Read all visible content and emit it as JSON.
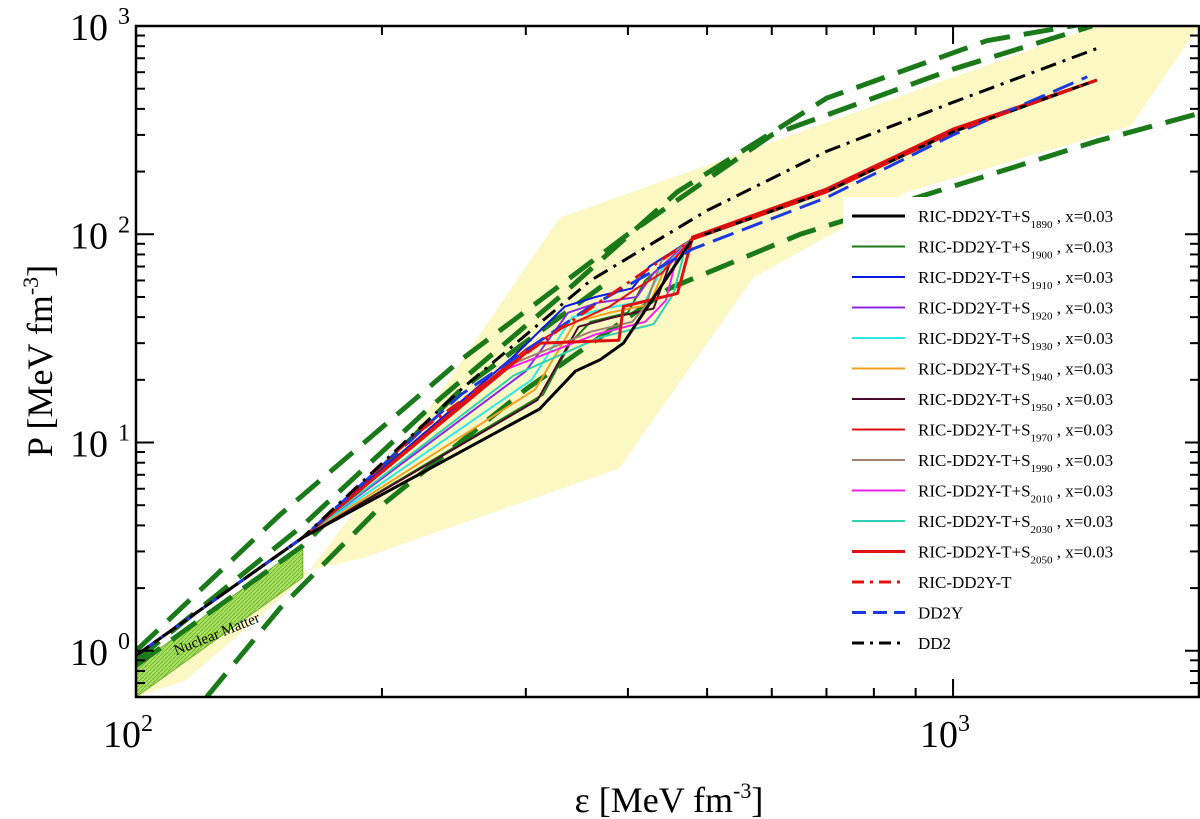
{
  "chart_data": {
    "type": "line",
    "title": "",
    "xlabel": {
      "base": "ε [MeV fm",
      "sup": "-3",
      "end": "]"
    },
    "ylabel": {
      "base": "P [MeV fm",
      "sup": "-3",
      "end": "]"
    },
    "xscale": "log",
    "yscale": "log",
    "xlim": [
      100,
      2000
    ],
    "ylim": [
      0.6,
      1000
    ],
    "xticks": [
      {
        "base": "10",
        "exp": "2",
        "value": 100
      },
      {
        "base": "10",
        "exp": "3",
        "value": 1000
      }
    ],
    "yticks": [
      {
        "base": "10",
        "exp": "0",
        "value": 1
      },
      {
        "base": "10",
        "exp": "1",
        "value": 10
      },
      {
        "base": "10",
        "exp": "2",
        "value": 100
      },
      {
        "base": "10",
        "exp": "3",
        "value": 1000
      }
    ],
    "grid": false,
    "legend_position": "right",
    "annotations": [
      {
        "text": "Nuclear Matter",
        "x": 112,
        "y": 0.95
      }
    ],
    "bands": {
      "yellow": [
        [
          115,
          0.72
        ],
        [
          160,
          2.2
        ],
        [
          210,
          9
        ],
        [
          330,
          120
        ],
        [
          1500,
          1000
        ],
        [
          2000,
          1000
        ],
        [
          1650,
          330
        ],
        [
          880,
          160
        ],
        [
          570,
          62
        ],
        [
          390,
          7.5
        ],
        [
          190,
          2.8
        ],
        [
          160,
          2.4
        ],
        [
          100,
          0.6
        ]
      ],
      "nuclear_matter": [
        [
          100,
          0.6
        ],
        [
          100,
          0.85
        ],
        [
          160,
          3.2
        ],
        [
          160,
          2.25
        ]
      ]
    },
    "series": [
      {
        "name": "RIC-DD2Y-T+S",
        "sub": "1890",
        "suffix": " , x=0.03",
        "color": "#000000",
        "dash": "solid",
        "width": 3,
        "points": [
          [
            100,
            0.95
          ],
          [
            160,
            3.5
          ],
          [
            312,
            14.5
          ],
          [
            345,
            22
          ],
          [
            370,
            25
          ],
          [
            395,
            30
          ],
          [
            480,
            95
          ],
          [
            700,
            160
          ],
          [
            1000,
            310
          ],
          [
            1500,
            550
          ]
        ]
      },
      {
        "name": "RIC-DD2Y-T+S",
        "sub": "1900",
        "suffix": " , x=0.03",
        "color": "#1a7a1a",
        "dash": "solid",
        "width": 2,
        "points": [
          [
            160,
            3.5
          ],
          [
            315,
            17
          ],
          [
            340,
            30
          ],
          [
            360,
            38
          ],
          [
            400,
            42
          ],
          [
            420,
            60
          ],
          [
            480,
            95
          ]
        ]
      },
      {
        "name": "RIC-DD2Y-T+S",
        "sub": "1910",
        "suffix": " , x=0.03",
        "color": "#0a1ae0",
        "dash": "solid",
        "width": 2,
        "points": [
          [
            160,
            3.5
          ],
          [
            290,
            26
          ],
          [
            335,
            45
          ],
          [
            365,
            50
          ],
          [
            405,
            55
          ],
          [
            425,
            70
          ],
          [
            480,
            95
          ]
        ]
      },
      {
        "name": "RIC-DD2Y-T+S",
        "sub": "1920",
        "suffix": " , x=0.03",
        "color": "#8a2be2",
        "dash": "solid",
        "width": 2,
        "points": [
          [
            160,
            3.5
          ],
          [
            300,
            22
          ],
          [
            338,
            42
          ],
          [
            368,
            47
          ],
          [
            410,
            50
          ],
          [
            430,
            65
          ],
          [
            480,
            95
          ]
        ]
      },
      {
        "name": "RIC-DD2Y-T+S",
        "sub": "1930",
        "suffix": " , x=0.03",
        "color": "#2ee8e8",
        "dash": "solid",
        "width": 2,
        "points": [
          [
            160,
            3.5
          ],
          [
            305,
            20
          ],
          [
            342,
            40
          ],
          [
            375,
            44
          ],
          [
            420,
            48
          ],
          [
            440,
            68
          ],
          [
            480,
            95
          ]
        ]
      },
      {
        "name": "RIC-DD2Y-T+S",
        "sub": "1940",
        "suffix": " , x=0.03",
        "color": "#f0a020",
        "dash": "solid",
        "width": 2,
        "points": [
          [
            160,
            3.5
          ],
          [
            308,
            18
          ],
          [
            345,
            38
          ],
          [
            380,
            42
          ],
          [
            425,
            46
          ],
          [
            445,
            70
          ],
          [
            480,
            95
          ]
        ]
      },
      {
        "name": "RIC-DD2Y-T+S",
        "sub": "1950",
        "suffix": " , x=0.03",
        "color": "#4a0a2a",
        "dash": "solid",
        "width": 2,
        "points": [
          [
            160,
            3.5
          ],
          [
            310,
            16
          ],
          [
            348,
            36
          ],
          [
            385,
            40
          ],
          [
            430,
            44
          ],
          [
            450,
            72
          ],
          [
            480,
            95
          ]
        ]
      },
      {
        "name": "RIC-DD2Y-T+S",
        "sub": "1970",
        "suffix": " , x=0.03",
        "color": "#e01010",
        "dash": "solid",
        "width": 2,
        "points": [
          [
            160,
            3.5
          ],
          [
            300,
            28
          ],
          [
            330,
            35
          ],
          [
            380,
            45
          ],
          [
            410,
            55
          ],
          [
            440,
            65
          ],
          [
            480,
            95
          ]
        ]
      },
      {
        "name": "RIC-DD2Y-T+S",
        "sub": "1990",
        "suffix": " , x=0.03",
        "color": "#a08070",
        "dash": "solid",
        "width": 2,
        "points": [
          [
            160,
            3.5
          ],
          [
            290,
            24
          ],
          [
            360,
            34
          ],
          [
            405,
            38
          ],
          [
            420,
            45
          ],
          [
            440,
            75
          ],
          [
            480,
            95
          ]
        ]
      },
      {
        "name": "RIC-DD2Y-T+S",
        "sub": "2010",
        "suffix": " , x=0.03",
        "color": "#f020f0",
        "dash": "solid",
        "width": 2,
        "points": [
          [
            160,
            3.5
          ],
          [
            280,
            22
          ],
          [
            365,
            33
          ],
          [
            420,
            38
          ],
          [
            445,
            48
          ],
          [
            460,
            80
          ],
          [
            480,
            95
          ]
        ]
      },
      {
        "name": "RIC-DD2Y-T+S",
        "sub": "2030",
        "suffix": " , x=0.03",
        "color": "#30d0b0",
        "dash": "solid",
        "width": 2,
        "points": [
          [
            160,
            3.5
          ],
          [
            290,
            21
          ],
          [
            370,
            32
          ],
          [
            430,
            37
          ],
          [
            455,
            52
          ],
          [
            470,
            85
          ],
          [
            480,
            95
          ]
        ]
      },
      {
        "name": "RIC-DD2Y-T+S",
        "sub": "2050",
        "suffix": " , x=0.03",
        "color": "#e01010",
        "dash": "solid",
        "width": 3,
        "points": [
          [
            100,
            0.95
          ],
          [
            160,
            3.5
          ],
          [
            310,
            30
          ],
          [
            390,
            31
          ],
          [
            395,
            45
          ],
          [
            460,
            52
          ],
          [
            480,
            97
          ],
          [
            700,
            165
          ],
          [
            1000,
            320
          ],
          [
            1500,
            550
          ]
        ]
      },
      {
        "name": "RIC-DD2Y-T",
        "color": "#e01010",
        "dash": "dashdot",
        "width": 3,
        "points": [
          [
            100,
            0.95
          ],
          [
            160,
            3.5
          ],
          [
            220,
            11
          ],
          [
            330,
            35
          ],
          [
            480,
            95
          ],
          [
            700,
            160
          ],
          [
            1000,
            310
          ],
          [
            1500,
            550
          ]
        ]
      },
      {
        "name": "DD2Y",
        "color": "#1a3ae0",
        "dash": "dash",
        "width": 3,
        "points": [
          [
            100,
            0.95
          ],
          [
            160,
            3.5
          ],
          [
            250,
            17
          ],
          [
            360,
            45
          ],
          [
            480,
            85
          ],
          [
            700,
            150
          ],
          [
            1000,
            300
          ],
          [
            1460,
            570
          ]
        ]
      },
      {
        "name": "DD2",
        "color": "#000000",
        "dash": "dashdot",
        "width": 3,
        "points": [
          [
            100,
            0.95
          ],
          [
            160,
            3.5
          ],
          [
            250,
            18
          ],
          [
            360,
            60
          ],
          [
            500,
            130
          ],
          [
            700,
            250
          ],
          [
            1000,
            430
          ],
          [
            1500,
            780
          ]
        ]
      }
    ],
    "bounds": [
      {
        "color": "#1a7a1a",
        "dash": "bigdash",
        "width": 5,
        "points": [
          [
            100,
            1.0
          ],
          [
            150,
            4.5
          ],
          [
            250,
            25
          ],
          [
            400,
            100
          ],
          [
            600,
            300
          ],
          [
            1000,
            620
          ],
          [
            1480,
            1000
          ]
        ]
      },
      {
        "color": "#1a7a1a",
        "dash": "bigdash",
        "width": 5,
        "points": [
          [
            100,
            0.9
          ],
          [
            160,
            4.0
          ],
          [
            230,
            15
          ],
          [
            330,
            50
          ],
          [
            460,
            160
          ],
          [
            700,
            450
          ],
          [
            1100,
            850
          ],
          [
            1500,
            1050
          ]
        ]
      },
      {
        "color": "#1a7a1a",
        "dash": "bigdash",
        "width": 5,
        "points": [
          [
            122,
            0.6
          ],
          [
            150,
            1.6
          ],
          [
            200,
            5
          ],
          [
            300,
            18
          ],
          [
            450,
            55
          ],
          [
            650,
            100
          ],
          [
            1000,
            170
          ],
          [
            1500,
            280
          ],
          [
            2000,
            380
          ]
        ]
      },
      {
        "color": "#1a7a1a",
        "dash": "bigdash",
        "width": 5,
        "points": [
          [
            100,
            0.85
          ],
          [
            160,
            3.2
          ],
          [
            250,
            18
          ],
          [
            380,
            60
          ]
        ]
      }
    ]
  }
}
